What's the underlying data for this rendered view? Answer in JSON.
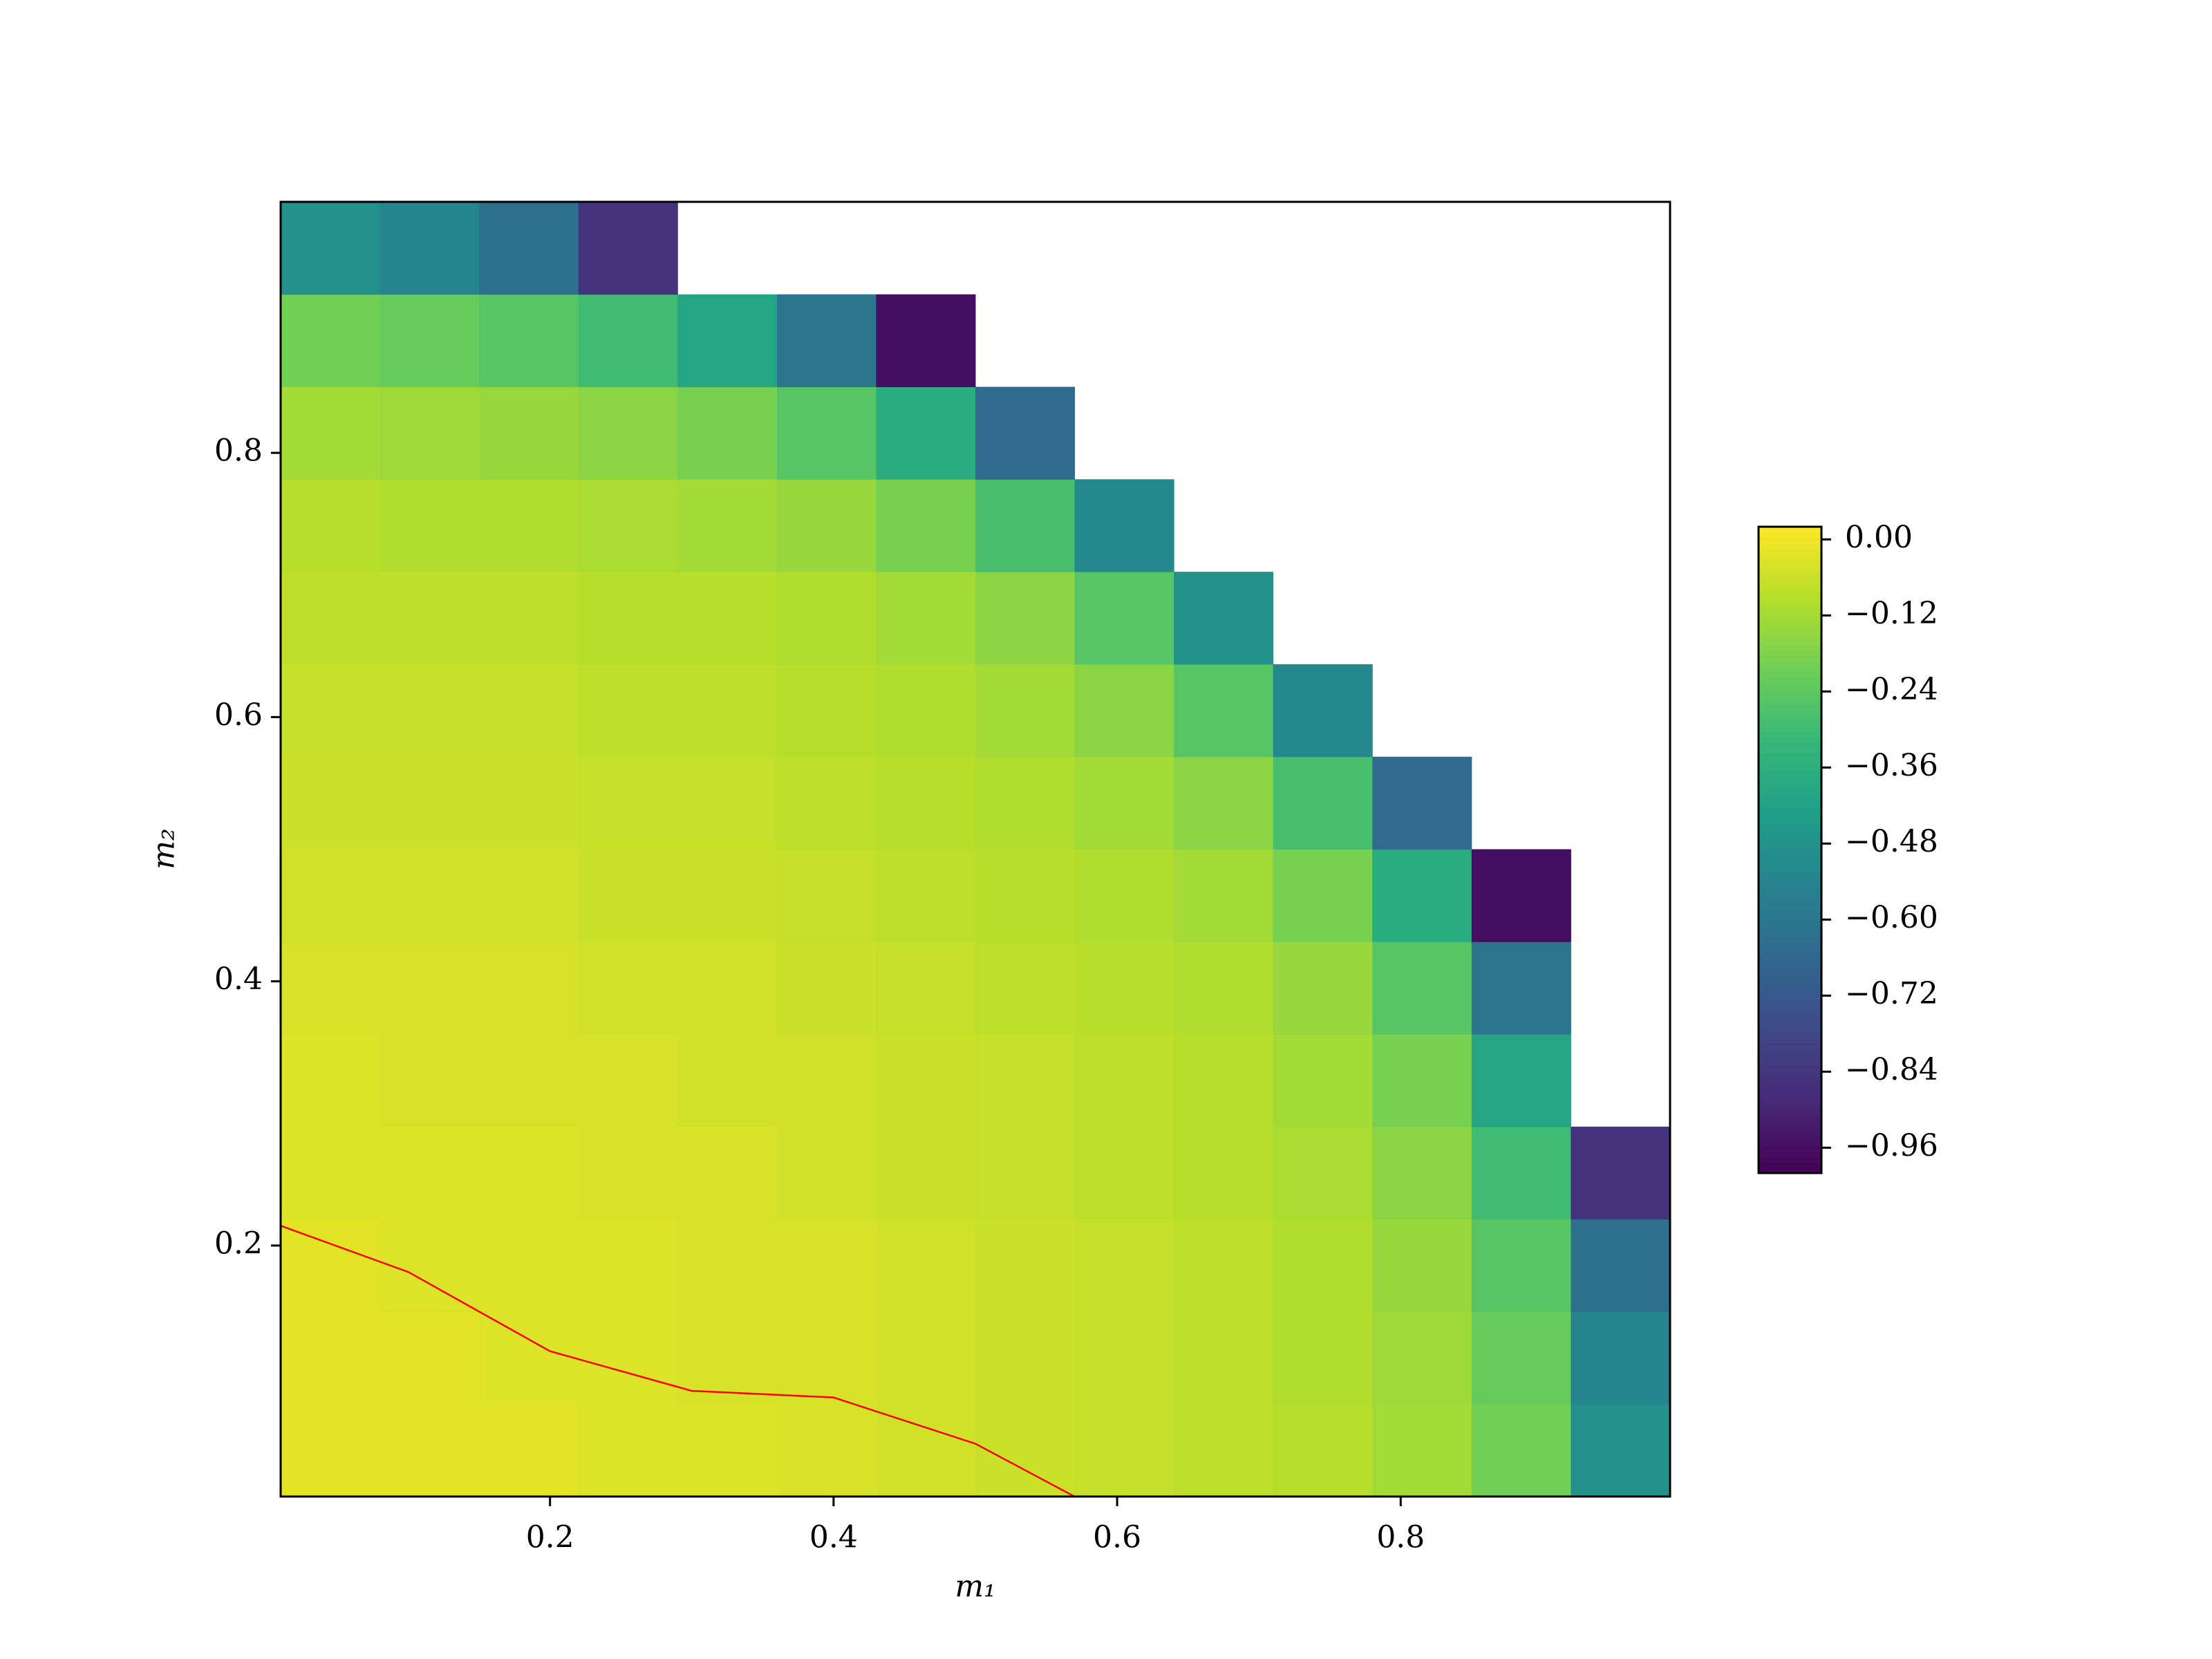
{
  "chart_data": {
    "type": "contour",
    "x_label": "m₁",
    "y_label": "m₂",
    "x": [
      0.045,
      0.115,
      0.185,
      0.255,
      0.325,
      0.395,
      0.465,
      0.535,
      0.605,
      0.675,
      0.745,
      0.815,
      0.885,
      0.955
    ],
    "y": [
      0.045,
      0.115,
      0.185,
      0.255,
      0.325,
      0.395,
      0.465,
      0.535,
      0.605,
      0.675,
      0.745,
      0.815,
      0.885,
      0.955
    ],
    "z": [
      [
        -0.02,
        -0.02,
        -0.02,
        -0.03,
        -0.03,
        -0.04,
        -0.05,
        -0.06,
        -0.07,
        -0.08,
        -0.09,
        -0.12,
        -0.2,
        -0.49
      ],
      [
        -0.02,
        -0.02,
        -0.03,
        -0.03,
        -0.04,
        -0.04,
        -0.05,
        -0.06,
        -0.07,
        -0.08,
        -0.1,
        -0.13,
        -0.22,
        -0.54
      ],
      [
        -0.02,
        -0.03,
        -0.03,
        -0.03,
        -0.04,
        -0.04,
        -0.05,
        -0.06,
        -0.07,
        -0.08,
        -0.1,
        -0.14,
        -0.25,
        -0.63
      ],
      [
        -0.03,
        -0.03,
        -0.03,
        -0.04,
        -0.04,
        -0.05,
        -0.06,
        -0.07,
        -0.08,
        -0.09,
        -0.11,
        -0.16,
        -0.3,
        -0.85
      ],
      [
        -0.03,
        -0.04,
        -0.04,
        -0.04,
        -0.05,
        -0.05,
        -0.06,
        -0.07,
        -0.08,
        -0.09,
        -0.12,
        -0.19,
        -0.4,
        null
      ],
      [
        -0.04,
        -0.04,
        -0.04,
        -0.05,
        -0.05,
        -0.06,
        -0.07,
        -0.08,
        -0.09,
        -0.1,
        -0.14,
        -0.25,
        -0.6,
        null
      ],
      [
        -0.05,
        -0.05,
        -0.05,
        -0.06,
        -0.06,
        -0.07,
        -0.08,
        -0.09,
        -0.1,
        -0.12,
        -0.19,
        -0.37,
        -0.96,
        null
      ],
      [
        -0.06,
        -0.06,
        -0.06,
        -0.07,
        -0.07,
        -0.08,
        -0.09,
        -0.1,
        -0.12,
        -0.16,
        -0.28,
        -0.65,
        null,
        null
      ],
      [
        -0.07,
        -0.07,
        -0.07,
        -0.08,
        -0.08,
        -0.09,
        -0.1,
        -0.12,
        -0.16,
        -0.25,
        -0.52,
        null,
        null,
        null
      ],
      [
        -0.08,
        -0.08,
        -0.08,
        -0.09,
        -0.09,
        -0.1,
        -0.12,
        -0.16,
        -0.25,
        -0.48,
        null,
        null,
        null,
        null
      ],
      [
        -0.09,
        -0.1,
        -0.1,
        -0.11,
        -0.12,
        -0.14,
        -0.19,
        -0.28,
        -0.52,
        null,
        null,
        null,
        null,
        null
      ],
      [
        -0.12,
        -0.13,
        -0.14,
        -0.16,
        -0.19,
        -0.25,
        -0.37,
        -0.65,
        null,
        null,
        null,
        null,
        null,
        null
      ],
      [
        -0.2,
        -0.22,
        -0.25,
        -0.3,
        -0.4,
        -0.6,
        -0.96,
        null,
        null,
        null,
        null,
        null,
        null,
        null
      ],
      [
        -0.49,
        -0.54,
        -0.63,
        -0.85,
        null,
        null,
        null,
        null,
        null,
        null,
        null,
        null,
        null,
        null
      ]
    ],
    "contour_line": {
      "color": "#ff0000",
      "x": [
        0.01,
        0.1,
        0.2,
        0.3,
        0.4,
        0.5,
        0.57
      ],
      "y": [
        0.215,
        0.18,
        0.12,
        0.09,
        0.085,
        0.05,
        0.01
      ]
    },
    "xlim": [
      0.01,
      0.99
    ],
    "ylim": [
      0.01,
      0.99
    ],
    "xticks": [
      0.2,
      0.4,
      0.6,
      0.8
    ],
    "yticks": [
      0.2,
      0.4,
      0.6,
      0.8
    ],
    "colormap": [
      "#440154",
      "#482878",
      "#3e4989",
      "#31688e",
      "#26828e",
      "#1f9e89",
      "#35b779",
      "#6ece58",
      "#b5de2b",
      "#fde725"
    ],
    "clim": [
      -1.0,
      0.02
    ],
    "cticks": [
      {
        "value": 0,
        "label": "0.00"
      },
      {
        "value": -0.12,
        "label": "−0.12"
      },
      {
        "value": -0.24,
        "label": "−0.24"
      },
      {
        "value": -0.36,
        "label": "−0.36"
      },
      {
        "value": -0.48,
        "label": "−0.48"
      },
      {
        "value": -0.6,
        "label": "−0.60"
      },
      {
        "value": -0.72,
        "label": "−0.72"
      },
      {
        "value": -0.84,
        "label": "−0.84"
      },
      {
        "value": -0.96,
        "label": "−0.96"
      }
    ]
  }
}
